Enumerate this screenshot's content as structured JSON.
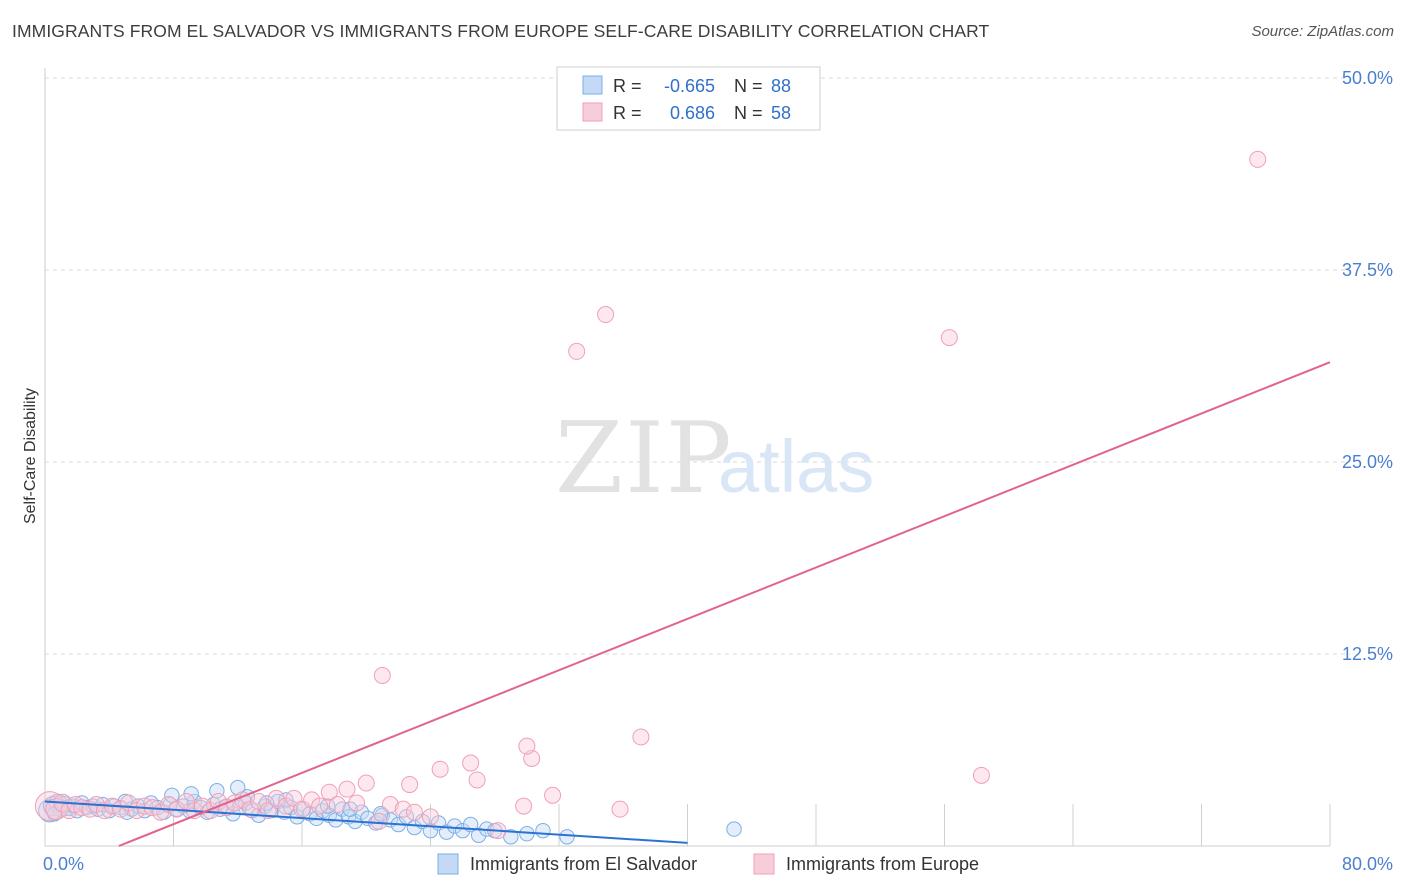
{
  "title": "IMMIGRANTS FROM EL SALVADOR VS IMMIGRANTS FROM EUROPE SELF-CARE DISABILITY CORRELATION CHART",
  "source": "Source: ZipAtlas.com",
  "watermark": {
    "zip": "ZIP",
    "atlas": "atlas"
  },
  "colors": {
    "blue": "#7baee8",
    "blue_fill": "#c3d9f5",
    "blue_line": "#2a73d2",
    "pink": "#f0a0b8",
    "pink_fill": "#f8cdda",
    "pink_line": "#e0648e",
    "tick_label": "#4a7fd0",
    "grid": "#d8d8d8"
  },
  "legend": {
    "rows": [
      {
        "r_label": "R =",
        "r_value": "-0.665",
        "n_label": "N =",
        "n_value": "88",
        "color": "blue"
      },
      {
        "r_label": "R =",
        "r_value": "0.686",
        "n_label": "N =",
        "n_value": "58",
        "color": "pink"
      }
    ]
  },
  "chart_data": {
    "type": "scatter",
    "title": "IMMIGRANTS FROM EL SALVADOR VS IMMIGRANTS FROM EUROPE SELF-CARE DISABILITY CORRELATION CHART",
    "xlabel": "",
    "ylabel": "Self-Care Disability",
    "xlim": [
      0,
      80
    ],
    "ylim": [
      0,
      50
    ],
    "x_tick_labels": [
      "0.0%",
      "80.0%"
    ],
    "y_ticks": [
      12.5,
      25.0,
      37.5,
      50.0
    ],
    "y_tick_labels": [
      "12.5%",
      "25.0%",
      "37.5%",
      "50.0%"
    ],
    "grid": true,
    "legend_position": "top-center",
    "series": [
      {
        "name": "Immigrants from El Salvador",
        "color": "blue",
        "R": -0.665,
        "N": 88,
        "trend": {
          "x": [
            0,
            40
          ],
          "y": [
            2.9,
            0.2
          ]
        },
        "points": [
          [
            0.3,
            2.3,
            1.4
          ],
          [
            0.5,
            2.6,
            1.2
          ],
          [
            0.8,
            2.8,
            1.1
          ],
          [
            1.0,
            2.4,
            1.0
          ],
          [
            1.2,
            2.7,
            1.0
          ],
          [
            1.5,
            2.5,
            1.0
          ],
          [
            1.8,
            2.6,
            0.9
          ],
          [
            2.0,
            2.3,
            0.9
          ],
          [
            2.3,
            2.8,
            0.9
          ],
          [
            2.6,
            2.5,
            0.9
          ],
          [
            3.0,
            2.6,
            0.9
          ],
          [
            3.3,
            2.4,
            0.9
          ],
          [
            3.6,
            2.7,
            0.9
          ],
          [
            4.0,
            2.3,
            0.9
          ],
          [
            4.3,
            2.6,
            0.9
          ],
          [
            4.7,
            2.5,
            0.9
          ],
          [
            5.0,
            2.9,
            0.9
          ],
          [
            5.4,
            2.4,
            0.9
          ],
          [
            5.8,
            2.6,
            0.9
          ],
          [
            6.2,
            2.3,
            0.9
          ],
          [
            6.6,
            2.8,
            0.9
          ],
          [
            7.0,
            2.5,
            0.9
          ],
          [
            7.4,
            2.2,
            0.9
          ],
          [
            7.8,
            2.7,
            0.9
          ],
          [
            8.2,
            2.4,
            0.9
          ],
          [
            8.6,
            2.6,
            0.9
          ],
          [
            9.0,
            2.3,
            0.9
          ],
          [
            9.3,
            2.9,
            0.9
          ],
          [
            9.7,
            2.5,
            0.9
          ],
          [
            10.1,
            2.2,
            0.9
          ],
          [
            10.5,
            2.7,
            0.9
          ],
          [
            10.9,
            2.4,
            0.9
          ],
          [
            11.3,
            2.6,
            0.9
          ],
          [
            11.7,
            2.1,
            0.9
          ],
          [
            12.1,
            2.5,
            0.9
          ],
          [
            12.5,
            2.8,
            0.9
          ],
          [
            12.9,
            2.3,
            0.9
          ],
          [
            13.3,
            2.0,
            0.9
          ],
          [
            13.7,
            2.6,
            0.9
          ],
          [
            14.1,
            2.3,
            0.9
          ],
          [
            14.5,
            2.9,
            0.9
          ],
          [
            14.9,
            2.2,
            0.9
          ],
          [
            15.3,
            2.5,
            0.9
          ],
          [
            15.7,
            1.9,
            0.9
          ],
          [
            16.1,
            2.4,
            0.9
          ],
          [
            16.5,
            2.1,
            0.9
          ],
          [
            16.9,
            1.8,
            0.9
          ],
          [
            17.3,
            2.3,
            0.9
          ],
          [
            17.7,
            2.0,
            0.9
          ],
          [
            18.1,
            1.7,
            0.9
          ],
          [
            18.5,
            2.4,
            0.9
          ],
          [
            18.9,
            1.9,
            0.9
          ],
          [
            19.3,
            1.6,
            0.9
          ],
          [
            19.7,
            2.2,
            0.9
          ],
          [
            20.1,
            1.8,
            0.9
          ],
          [
            20.6,
            1.5,
            0.9
          ],
          [
            21.0,
            2.0,
            0.9
          ],
          [
            21.5,
            1.7,
            0.9
          ],
          [
            22.0,
            1.4,
            0.9
          ],
          [
            22.5,
            1.9,
            0.9
          ],
          [
            23.0,
            1.2,
            0.9
          ],
          [
            23.5,
            1.6,
            0.9
          ],
          [
            24.0,
            1.0,
            0.9
          ],
          [
            24.5,
            1.5,
            0.9
          ],
          [
            25.0,
            0.9,
            0.9
          ],
          [
            25.5,
            1.3,
            0.9
          ],
          [
            26.0,
            1.0,
            0.9
          ],
          [
            26.5,
            1.4,
            0.9
          ],
          [
            27.0,
            0.7,
            0.9
          ],
          [
            27.5,
            1.1,
            0.9
          ],
          [
            28.0,
            1.0,
            0.9
          ],
          [
            29.0,
            0.6,
            0.9
          ],
          [
            30.0,
            0.8,
            0.9
          ],
          [
            31.0,
            1.0,
            0.9
          ],
          [
            32.5,
            0.6,
            0.9
          ],
          [
            0.6,
            2.1,
            0.9
          ],
          [
            5.1,
            2.2,
            0.9
          ],
          [
            7.9,
            3.3,
            0.9
          ],
          [
            10.7,
            3.6,
            0.9
          ],
          [
            12.0,
            3.8,
            0.9
          ],
          [
            13.8,
            2.8,
            0.9
          ],
          [
            19.0,
            2.4,
            0.9
          ],
          [
            20.9,
            2.1,
            0.9
          ],
          [
            12.6,
            3.2,
            0.9
          ],
          [
            9.1,
            3.4,
            0.9
          ],
          [
            17.6,
            2.6,
            0.9
          ],
          [
            42.9,
            1.1,
            0.9
          ],
          [
            15.0,
            3.0,
            0.9
          ]
        ]
      },
      {
        "name": "Immigrants from Europe",
        "color": "pink",
        "R": 0.686,
        "N": 58,
        "trend": {
          "x": [
            4.6,
            80
          ],
          "y": [
            0,
            31.5
          ]
        },
        "points": [
          [
            0.3,
            2.6,
            1.8
          ],
          [
            0.7,
            2.4,
            1.3
          ],
          [
            1.1,
            2.8,
            1.1
          ],
          [
            1.5,
            2.3,
            1.0
          ],
          [
            1.9,
            2.7,
            1.0
          ],
          [
            2.3,
            2.5,
            1.0
          ],
          [
            2.8,
            2.4,
            1.0
          ],
          [
            3.2,
            2.7,
            1.0
          ],
          [
            3.7,
            2.3,
            1.0
          ],
          [
            4.2,
            2.6,
            1.0
          ],
          [
            4.7,
            2.4,
            1.0
          ],
          [
            5.2,
            2.8,
            1.0
          ],
          [
            5.7,
            2.3,
            1.0
          ],
          [
            6.2,
            2.6,
            1.0
          ],
          [
            6.7,
            2.5,
            1.0
          ],
          [
            7.2,
            2.2,
            1.0
          ],
          [
            7.7,
            2.7,
            1.0
          ],
          [
            8.2,
            2.4,
            1.0
          ],
          [
            8.8,
            2.9,
            1.0
          ],
          [
            9.3,
            2.3,
            1.0
          ],
          [
            9.8,
            2.6,
            1.0
          ],
          [
            10.3,
            2.3,
            1.0
          ],
          [
            10.8,
            2.9,
            1.0
          ],
          [
            11.3,
            2.5,
            1.0
          ],
          [
            11.8,
            2.8,
            1.0
          ],
          [
            12.3,
            3.0,
            1.0
          ],
          [
            12.8,
            2.4,
            1.0
          ],
          [
            13.3,
            2.9,
            1.0
          ],
          [
            13.9,
            2.3,
            1.0
          ],
          [
            14.4,
            3.1,
            1.0
          ],
          [
            15.0,
            2.6,
            1.0
          ],
          [
            15.5,
            3.1,
            1.0
          ],
          [
            16.0,
            2.4,
            1.0
          ],
          [
            16.6,
            3.0,
            1.0
          ],
          [
            17.1,
            2.6,
            1.0
          ],
          [
            17.7,
            3.5,
            1.0
          ],
          [
            18.2,
            2.7,
            1.0
          ],
          [
            18.8,
            3.7,
            1.0
          ],
          [
            19.4,
            2.8,
            1.0
          ],
          [
            20.0,
            4.1,
            1.0
          ],
          [
            20.8,
            1.6,
            1.0
          ],
          [
            21.5,
            2.7,
            1.0
          ],
          [
            22.3,
            2.4,
            1.0
          ],
          [
            23.0,
            2.2,
            1.0
          ],
          [
            24.0,
            1.9,
            1.0
          ],
          [
            28.2,
            1.0,
            1.0
          ],
          [
            29.8,
            2.6,
            1.0
          ],
          [
            30.3,
            5.7,
            1.0
          ],
          [
            30.0,
            6.5,
            1.0
          ],
          [
            31.6,
            3.3,
            1.0
          ],
          [
            35.8,
            2.4,
            1.0
          ],
          [
            37.1,
            7.1,
            1.0
          ],
          [
            24.6,
            5.0,
            1.0
          ],
          [
            26.9,
            4.3,
            1.0
          ],
          [
            26.5,
            5.4,
            1.0
          ],
          [
            21.0,
            11.1,
            1.0
          ],
          [
            33.1,
            32.2,
            1.0
          ],
          [
            34.9,
            34.6,
            1.0
          ]
        ],
        "extra_points": [
          [
            56.3,
            33.1,
            1.0
          ],
          [
            58.3,
            4.6,
            1.0
          ],
          [
            75.5,
            44.7,
            1.0
          ],
          [
            22.7,
            4.0,
            1.0
          ]
        ]
      }
    ]
  }
}
